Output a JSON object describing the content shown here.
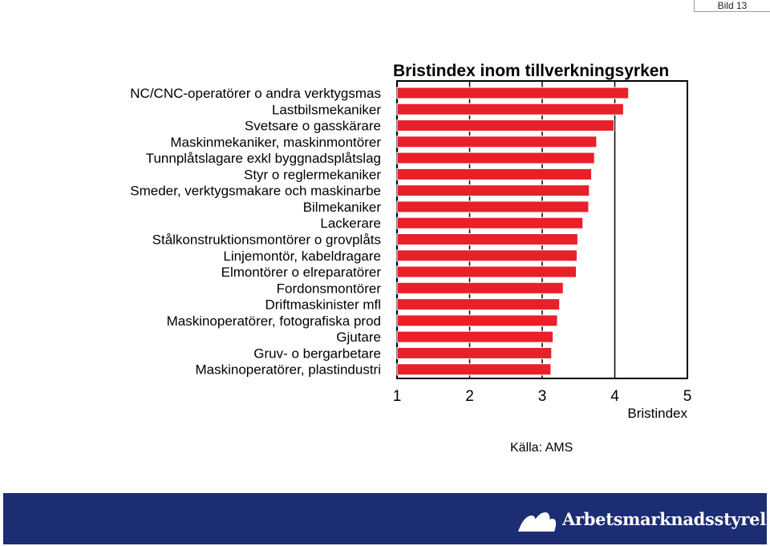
{
  "slide_label": "Bild 13",
  "chart_data": {
    "type": "bar",
    "orientation": "horizontal",
    "title": "Bristindex inom tillverkningsyrken",
    "xlabel": "Bristindex",
    "ylabel": "",
    "xlim": [
      1,
      5
    ],
    "xticks": [
      1,
      2,
      3,
      4,
      5
    ],
    "grid": "vertical",
    "legend": "none",
    "source": "Källa: AMS",
    "bar_color": "#e8202a",
    "categories": [
      "NC/CNC-operatörer o andra verktygsmas",
      "Lastbilsmekaniker",
      "Svetsare o gasskärare",
      "Maskinmekaniker, maskinmontörer",
      "Tunnplåtslagare exkl byggnadsplåtslag",
      "Styr o reglermekaniker",
      "Smeder, verktygsmakare och maskinarbe",
      "Bilmekaniker",
      "Lackerare",
      "Stålkonstruktionsmontörer o grovplåts",
      "Linjemontör, kabeldragare",
      "Elmontörer o elreparatörer",
      "Fordonsmontörer",
      "Driftmaskinister mfl",
      "Maskinoperatörer, fotografiska prod",
      "Gjutare",
      "Gruv- o bergarbetare",
      "Maskinoperatörer, plastindustri"
    ],
    "values": [
      4.19,
      4.12,
      3.99,
      3.75,
      3.72,
      3.68,
      3.65,
      3.64,
      3.56,
      3.49,
      3.48,
      3.47,
      3.29,
      3.24,
      3.21,
      3.15,
      3.13,
      3.12
    ]
  },
  "footer": {
    "brand": "Arbetsmarknadsstyrelsen",
    "background": "#1c2d74",
    "logo_icon": "ams-logo-icon"
  }
}
